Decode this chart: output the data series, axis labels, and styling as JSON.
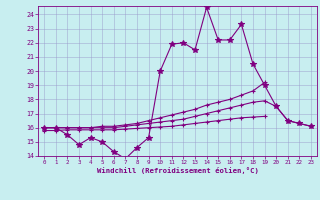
{
  "xlabel": "Windchill (Refroidissement éolien,°C)",
  "x": [
    0,
    1,
    2,
    3,
    4,
    5,
    6,
    7,
    8,
    9,
    10,
    11,
    12,
    13,
    14,
    15,
    16,
    17,
    18,
    19,
    20,
    21,
    22,
    23
  ],
  "main": [
    16.0,
    16.0,
    15.5,
    14.8,
    15.3,
    15.0,
    14.3,
    13.8,
    14.6,
    15.3,
    20.0,
    21.9,
    22.0,
    21.5,
    24.5,
    22.2,
    22.2,
    23.3,
    20.5,
    19.0,
    17.5,
    16.5,
    16.3,
    16.1
  ],
  "upper": [
    16.0,
    16.0,
    16.0,
    16.0,
    16.0,
    16.1,
    16.1,
    16.2,
    16.3,
    16.5,
    16.7,
    16.9,
    17.1,
    17.3,
    17.6,
    17.8,
    18.0,
    18.3,
    18.6,
    19.2,
    null,
    null,
    null,
    null
  ],
  "mid": [
    16.0,
    16.0,
    16.0,
    16.0,
    16.0,
    16.0,
    16.0,
    16.1,
    16.2,
    16.3,
    16.4,
    16.5,
    16.6,
    16.8,
    17.0,
    17.2,
    17.4,
    17.6,
    17.8,
    17.9,
    17.5,
    16.5,
    16.3,
    16.1
  ],
  "lower": [
    15.8,
    15.8,
    15.85,
    15.85,
    15.85,
    15.85,
    15.85,
    15.9,
    15.95,
    16.0,
    16.05,
    16.1,
    16.2,
    16.3,
    16.4,
    16.5,
    16.6,
    16.7,
    16.75,
    16.8,
    null,
    null,
    null,
    null
  ],
  "ylim": [
    14,
    24.6
  ],
  "xlim": [
    -0.5,
    23.5
  ],
  "yticks": [
    14,
    15,
    16,
    17,
    18,
    19,
    20,
    21,
    22,
    23,
    24
  ],
  "xticks": [
    0,
    1,
    2,
    3,
    4,
    5,
    6,
    7,
    8,
    9,
    10,
    11,
    12,
    13,
    14,
    15,
    16,
    17,
    18,
    19,
    20,
    21,
    22,
    23
  ],
  "line_color": "#800080",
  "bg_color": "#c8eef0",
  "grid_color": "#9999cc",
  "linewidth": 0.8,
  "markersize": 3.5
}
